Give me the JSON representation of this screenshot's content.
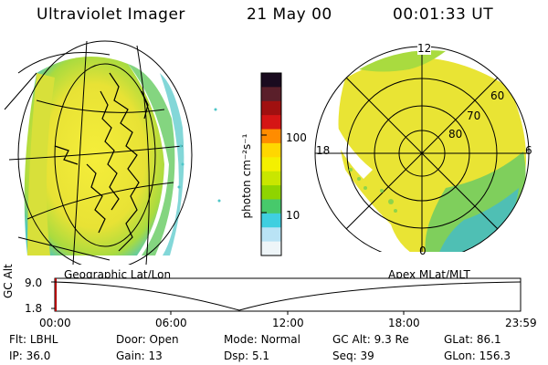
{
  "header": {
    "instrument": "Ultraviolet Imager",
    "date": "21 May 00",
    "time": "00:01:33 UT"
  },
  "colorbar": {
    "label": "photon cm⁻²s⁻¹",
    "ticks": [
      "100",
      "10"
    ],
    "colors": [
      "#1a0b1f",
      "#5a1f2a",
      "#a01010",
      "#d51515",
      "#ff8c00",
      "#ffd700",
      "#f4f000",
      "#c9e600",
      "#8fd400",
      "#47c96b",
      "#3fcfe0",
      "#b9e3f5",
      "#eef5f8"
    ]
  },
  "polar_plot": {
    "mlt_labels": [
      "12",
      "18",
      "6",
      "0"
    ],
    "lat_labels": [
      "60",
      "70",
      "80"
    ]
  },
  "orbit_panel": {
    "left_label": "Geographic Lat/Lon",
    "right_label": "Apex MLat/MLT",
    "y_axis_label": "GC Alt",
    "y_ticks": [
      "9.0",
      "1.8"
    ],
    "x_ticks": [
      "00:00",
      "06:00",
      "12:00",
      "18:00",
      "23:59"
    ]
  },
  "info": {
    "row1": [
      {
        "key": "Flt:",
        "value": "LBHL"
      },
      {
        "key": "Door:",
        "value": "Open"
      },
      {
        "key": "Mode:",
        "value": "Normal"
      },
      {
        "key": "GC Alt:",
        "value": "9.3 Re"
      },
      {
        "key": "GLat:",
        "value": "86.1"
      }
    ],
    "row2": [
      {
        "key": "IP:",
        "value": "36.0"
      },
      {
        "key": "Gain:",
        "value": "13"
      },
      {
        "key": "Dsp:",
        "value": "5.1"
      },
      {
        "key": "Seq:",
        "value": "39"
      },
      {
        "key": "GLon:",
        "value": "156.3"
      }
    ]
  },
  "colors": {
    "aurora_main": "#f2ea2e",
    "aurora_green": "#8fd44a",
    "aurora_cyan": "#4fc6c8"
  }
}
